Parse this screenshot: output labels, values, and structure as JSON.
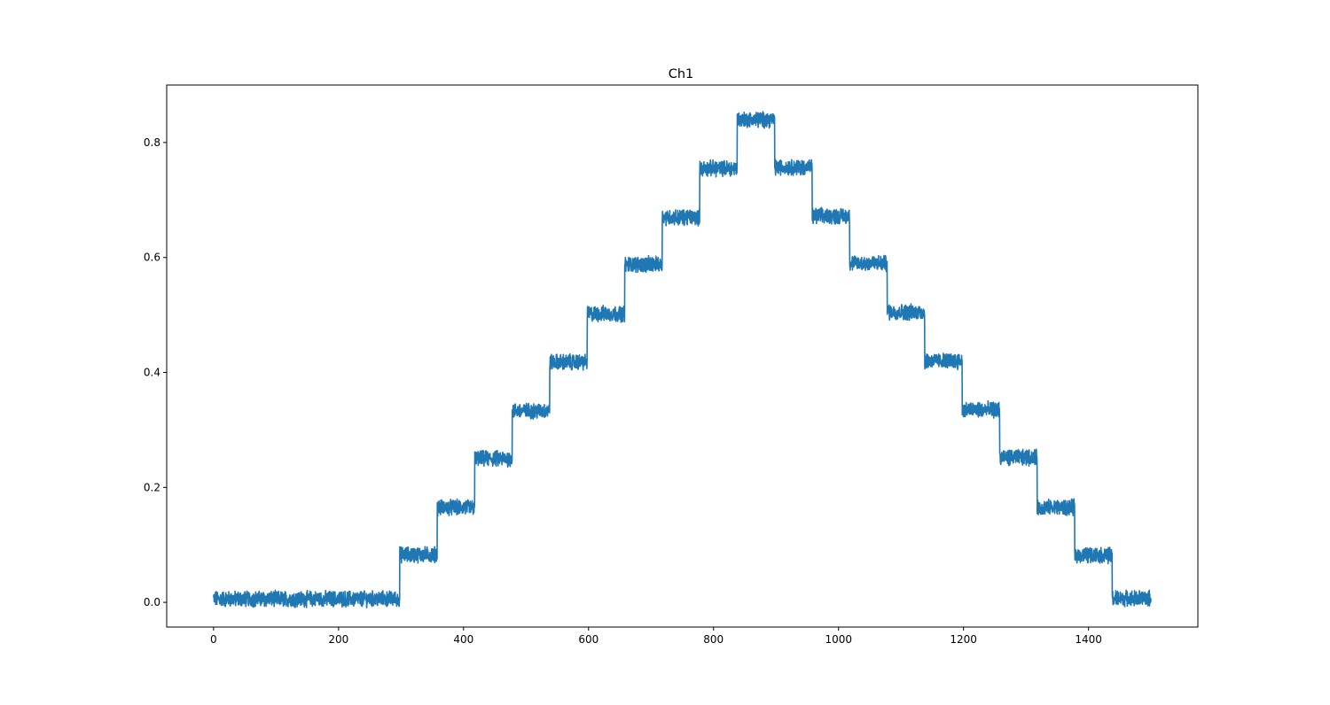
{
  "chart_data": {
    "type": "line",
    "title": "Ch1",
    "xlabel": "",
    "ylabel": "",
    "xlim": [
      -75,
      1575
    ],
    "ylim": [
      -0.043,
      0.9
    ],
    "xticks": [
      0,
      200,
      400,
      600,
      800,
      1000,
      1200,
      1400
    ],
    "xtick_labels": [
      "0",
      "200",
      "400",
      "600",
      "800",
      "1000",
      "1200",
      "1400"
    ],
    "yticks": [
      0.0,
      0.2,
      0.4,
      0.6,
      0.8
    ],
    "ytick_labels": [
      "0.0",
      "0.2",
      "0.4",
      "0.6",
      "0.8"
    ],
    "grid": false,
    "legend": "none",
    "series": [
      {
        "color": "#1f77b4",
        "noise_amplitude": 0.012,
        "x_range": [
          0,
          1500
        ],
        "steps": [
          {
            "x_start": 0,
            "x_end": 298,
            "y": 0.006
          },
          {
            "x_start": 298,
            "x_end": 358,
            "y": 0.083
          },
          {
            "x_start": 358,
            "x_end": 418,
            "y": 0.165
          },
          {
            "x_start": 418,
            "x_end": 478,
            "y": 0.25
          },
          {
            "x_start": 478,
            "x_end": 538,
            "y": 0.333
          },
          {
            "x_start": 538,
            "x_end": 598,
            "y": 0.418
          },
          {
            "x_start": 598,
            "x_end": 658,
            "y": 0.502
          },
          {
            "x_start": 658,
            "x_end": 718,
            "y": 0.588
          },
          {
            "x_start": 718,
            "x_end": 778,
            "y": 0.67
          },
          {
            "x_start": 778,
            "x_end": 838,
            "y": 0.755
          },
          {
            "x_start": 838,
            "x_end": 898,
            "y": 0.84
          },
          {
            "x_start": 898,
            "x_end": 958,
            "y": 0.757
          },
          {
            "x_start": 958,
            "x_end": 1018,
            "y": 0.672
          },
          {
            "x_start": 1018,
            "x_end": 1078,
            "y": 0.59
          },
          {
            "x_start": 1078,
            "x_end": 1138,
            "y": 0.505
          },
          {
            "x_start": 1138,
            "x_end": 1198,
            "y": 0.42
          },
          {
            "x_start": 1198,
            "x_end": 1258,
            "y": 0.335
          },
          {
            "x_start": 1258,
            "x_end": 1318,
            "y": 0.252
          },
          {
            "x_start": 1318,
            "x_end": 1378,
            "y": 0.165
          },
          {
            "x_start": 1378,
            "x_end": 1438,
            "y": 0.082
          },
          {
            "x_start": 1438,
            "x_end": 1500,
            "y": 0.007
          }
        ]
      }
    ]
  }
}
